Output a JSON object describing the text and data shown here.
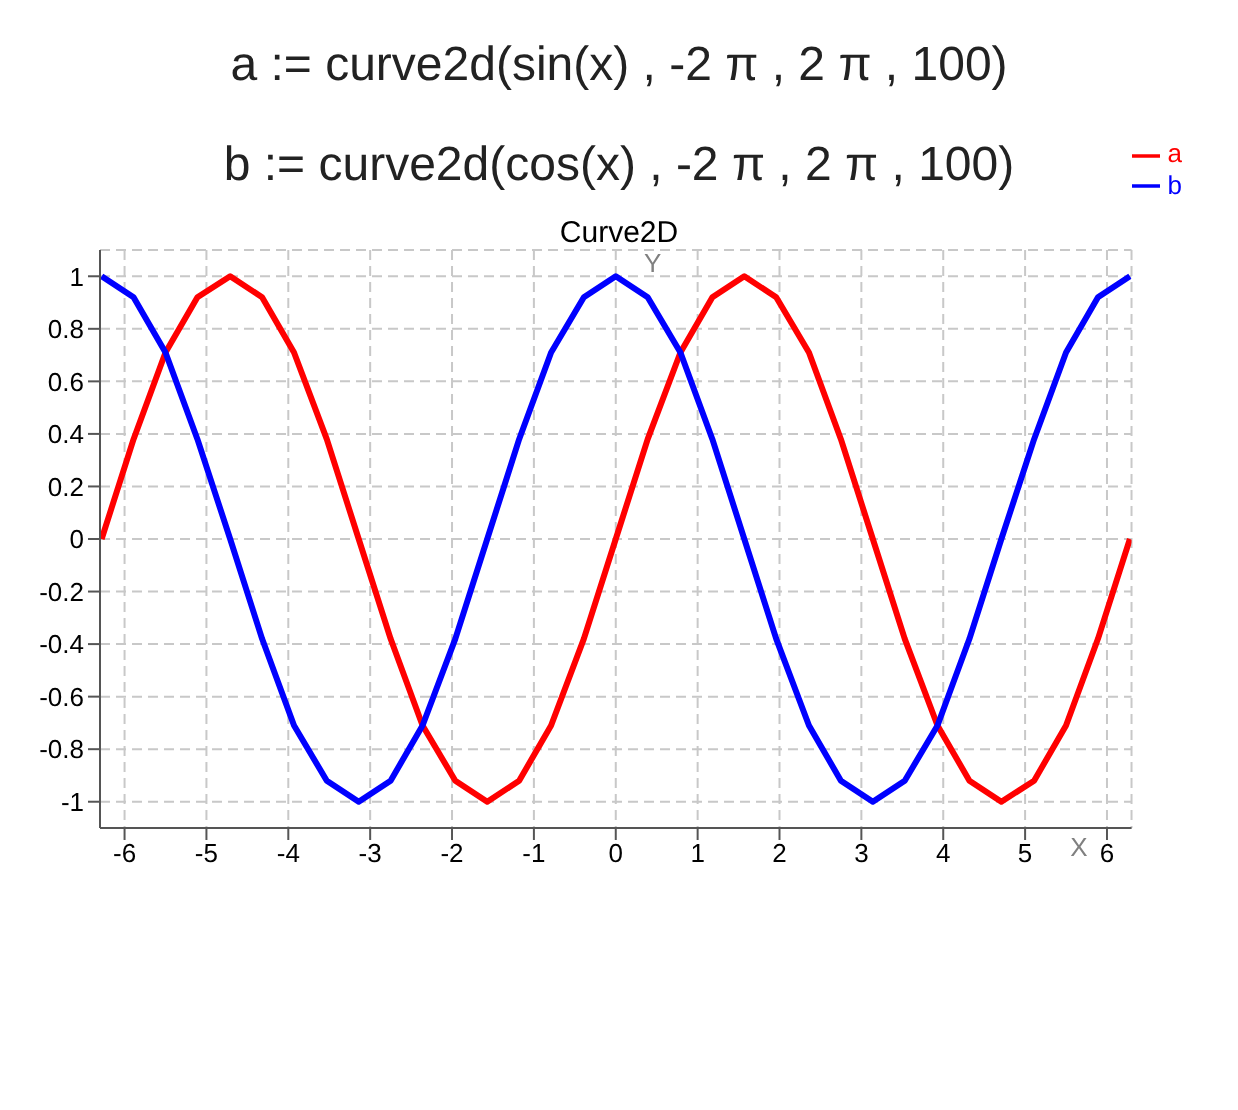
{
  "chart_data": {
    "type": "line",
    "title": "Curve2D",
    "xlabel": "X",
    "ylabel": "Y",
    "annotations": [
      "a := curve2d(sin(x) , -2 π , 2 π , 100)",
      "b := curve2d(cos(x) , -2 π , 2 π , 100)"
    ],
    "x": [
      -6.28,
      -5.89,
      -5.5,
      -5.11,
      -4.71,
      -4.32,
      -3.93,
      -3.53,
      -3.14,
      -2.75,
      -2.36,
      -1.96,
      -1.57,
      -1.18,
      -0.79,
      -0.39,
      0,
      0.39,
      0.79,
      1.18,
      1.57,
      1.96,
      2.36,
      2.75,
      3.14,
      3.53,
      3.93,
      4.32,
      4.71,
      5.11,
      5.5,
      5.89,
      6.28
    ],
    "series": [
      {
        "name": "a",
        "color": "#ff0000",
        "values": [
          0,
          0.38,
          0.71,
          0.92,
          1,
          0.92,
          0.71,
          0.38,
          0,
          -0.38,
          -0.71,
          -0.92,
          -1,
          -0.92,
          -0.71,
          -0.38,
          0,
          0.38,
          0.71,
          0.92,
          1,
          0.92,
          0.71,
          0.38,
          0,
          -0.38,
          -0.71,
          -0.92,
          -1,
          -0.92,
          -0.71,
          -0.38,
          0
        ]
      },
      {
        "name": "b",
        "color": "#0000ff",
        "values": [
          1,
          0.92,
          0.71,
          0.38,
          0,
          -0.38,
          -0.71,
          -0.92,
          -1,
          -0.92,
          -0.71,
          -0.38,
          0,
          0.38,
          0.71,
          0.92,
          1,
          0.92,
          0.71,
          0.38,
          0,
          -0.38,
          -0.71,
          -0.92,
          -1,
          -0.92,
          -0.71,
          -0.38,
          0,
          0.38,
          0.71,
          0.92,
          1
        ]
      }
    ],
    "xlim": [
      -6.3,
      6.3
    ],
    "ylim": [
      -1.1,
      1.1
    ],
    "xticks": [
      -6,
      -5,
      -4,
      -3,
      -2,
      -1,
      0,
      1,
      2,
      3,
      4,
      5,
      6
    ],
    "yticks": [
      -1,
      -0.8,
      -0.6,
      -0.4,
      -0.2,
      0,
      0.2,
      0.4,
      0.6,
      0.8,
      1
    ],
    "grid": true,
    "legend": "top right",
    "marker": "none",
    "line_style": "solid"
  }
}
